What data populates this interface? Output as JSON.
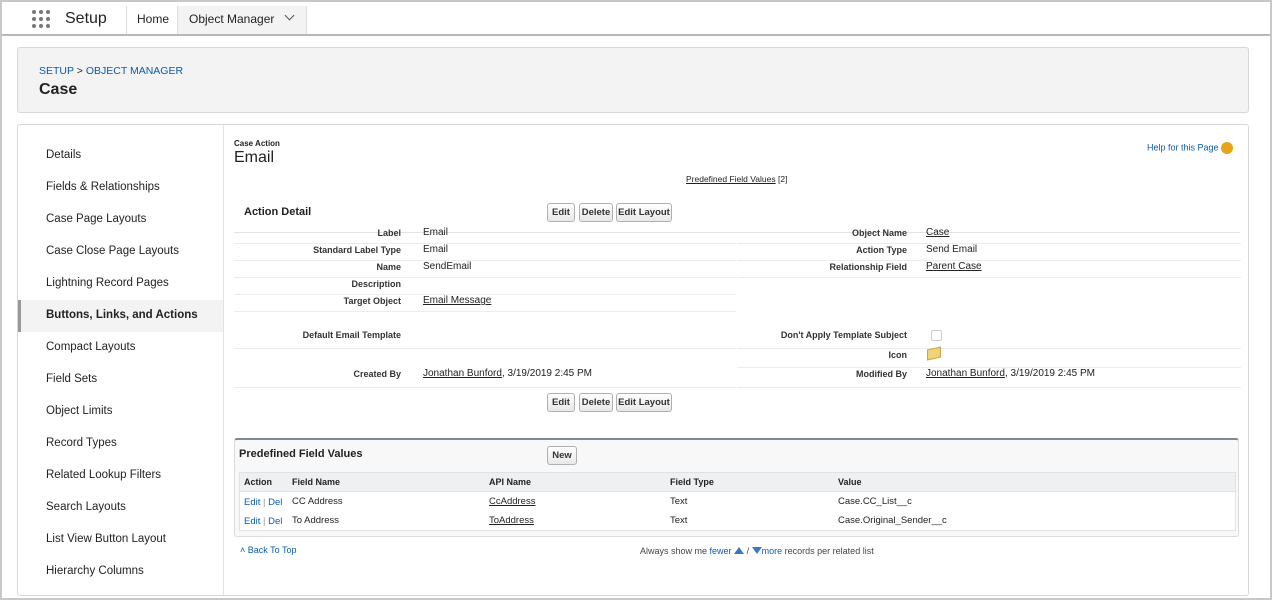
{
  "app": {
    "name": "Setup",
    "tabs": [
      "Home",
      "Object Manager"
    ]
  },
  "header": {
    "breadcrumb": [
      "SETUP",
      "OBJECT MANAGER"
    ],
    "breadcrumb_separator": ">",
    "title": "Case"
  },
  "sidebar": {
    "items": [
      "Details",
      "Fields & Relationships",
      "Case Page Layouts",
      "Case Close Page Layouts",
      "Lightning Record Pages",
      "Buttons, Links, and Actions",
      "Compact Layouts",
      "Field Sets",
      "Object Limits",
      "Record Types",
      "Related Lookup Filters",
      "Search Layouts",
      "List View Button Layout",
      "Hierarchy Columns"
    ]
  },
  "page": {
    "subtitle": "Case Action",
    "title": "Email",
    "help": "Help for this Page",
    "related_link": "Predefined Field Values",
    "related_count": "[2]"
  },
  "detail": {
    "title": "Action Detail",
    "buttons": [
      "Edit",
      "Delete",
      "Edit Layout"
    ],
    "sections": [
      {
        "rows": [
          [
            {
              "label": "Label",
              "value": "Email"
            },
            {
              "label": "Object Name",
              "value": "Case",
              "link": true
            }
          ],
          [
            {
              "label": "Standard Label Type",
              "value": "Email"
            },
            {
              "label": "Action Type",
              "value": "Send Email"
            }
          ],
          [
            {
              "label": "Name",
              "value": "SendEmail"
            },
            {
              "label": "Relationship Field",
              "value": "Parent Case",
              "link": true
            }
          ],
          [
            {
              "label": "Description"
            },
            null
          ],
          [
            {
              "label": "Target Object",
              "value": "Email Message",
              "link": true
            },
            null
          ]
        ]
      },
      {
        "rows": [
          [
            {
              "label": "Default Email Template"
            },
            {
              "label": "Don't Apply Template Subject",
              "control": "checkbox"
            }
          ],
          [
            null,
            {
              "label": "Icon",
              "control": "icon"
            }
          ],
          [
            {
              "label": "Created By",
              "value": "Jonathan Bunford",
              "link": true,
              "suffix": ", 3/19/2019 2:45 PM"
            },
            {
              "label": "Modified By",
              "value": "Jonathan Bunford",
              "link": true,
              "suffix": ", 3/19/2019 2:45 PM"
            }
          ]
        ]
      }
    ]
  },
  "related": {
    "title": "Predefined Field Values",
    "button": "New",
    "columns": [
      "Action",
      "Field Name",
      "API Name",
      "Field Type",
      "Value"
    ],
    "action_separator": "|",
    "rows": [
      {
        "actions": [
          "Edit",
          "Del"
        ],
        "cells": [
          "CC Address",
          "CcAddress",
          "Text",
          "Case.CC_List__c"
        ]
      },
      {
        "actions": [
          "Edit",
          "Del"
        ],
        "cells": [
          "To Address",
          "ToAddress",
          "Text",
          "Case.Original_Sender__c"
        ]
      }
    ]
  },
  "footer": {
    "back": "Back To Top",
    "prefix": "Always show me",
    "fewer": "fewer",
    "separator": "/",
    "more": "more",
    "suffix": "records per related list"
  }
}
